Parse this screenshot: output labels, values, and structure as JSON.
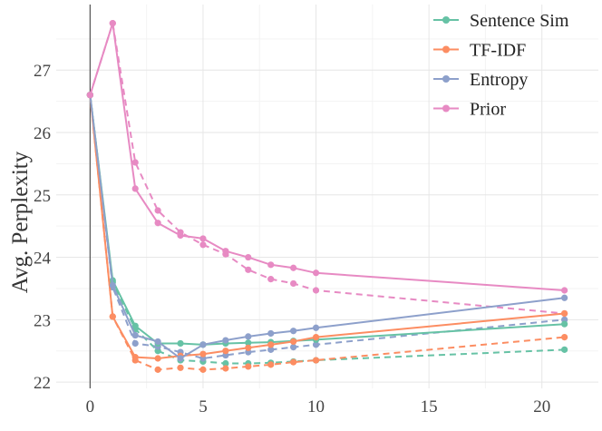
{
  "chart_data": {
    "type": "line",
    "title": "",
    "xlabel": "",
    "ylabel": "Avg. Perplexity",
    "xlim": [
      -1.5,
      22.5
    ],
    "ylim": [
      21.9,
      28.05
    ],
    "xticks": [
      0,
      5,
      10,
      15,
      20
    ],
    "yticks": [
      22,
      23,
      24,
      25,
      26,
      27
    ],
    "grid": true,
    "legend_position": "top-right",
    "series": [
      {
        "name": "Sentence Sim",
        "color": "#66c2a5",
        "style": "solid",
        "legend": true,
        "x": [
          0,
          1,
          2,
          3,
          4,
          5,
          6,
          7,
          8,
          9,
          10,
          21
        ],
        "y": [
          26.6,
          23.63,
          22.9,
          22.62,
          22.62,
          22.6,
          22.62,
          22.63,
          22.64,
          22.66,
          22.68,
          22.93
        ]
      },
      {
        "name": "TF-IDF",
        "color": "#fc8d62",
        "style": "solid",
        "legend": true,
        "x": [
          0,
          1,
          2,
          3,
          4,
          5,
          6,
          7,
          8,
          9,
          10,
          21
        ],
        "y": [
          26.6,
          23.05,
          22.4,
          22.38,
          22.42,
          22.45,
          22.5,
          22.55,
          22.6,
          22.65,
          22.72,
          23.1
        ]
      },
      {
        "name": "Entropy",
        "color": "#8da0cb",
        "style": "solid",
        "legend": true,
        "x": [
          0,
          1,
          2,
          3,
          4,
          5,
          6,
          7,
          8,
          9,
          10,
          21
        ],
        "y": [
          26.6,
          23.55,
          22.75,
          22.65,
          22.38,
          22.6,
          22.67,
          22.73,
          22.78,
          22.82,
          22.87,
          23.35
        ]
      },
      {
        "name": "Prior",
        "color": "#e78ac3",
        "style": "solid",
        "legend": true,
        "x": [
          0,
          1,
          2,
          3,
          4,
          5,
          6,
          7,
          8,
          9,
          10,
          21
        ],
        "y": [
          26.6,
          27.75,
          25.1,
          24.55,
          24.35,
          24.3,
          24.1,
          24.0,
          23.88,
          23.83,
          23.75,
          23.47
        ]
      },
      {
        "name": "Sentence Sim (dashed)",
        "color": "#66c2a5",
        "style": "dashed",
        "legend": false,
        "x": [
          0,
          1,
          2,
          3,
          4,
          5,
          6,
          7,
          8,
          9,
          10,
          21
        ],
        "y": [
          26.6,
          23.6,
          22.85,
          22.5,
          22.35,
          22.33,
          22.3,
          22.3,
          22.31,
          22.33,
          22.35,
          22.52
        ]
      },
      {
        "name": "TF-IDF (dashed)",
        "color": "#fc8d62",
        "style": "dashed",
        "legend": false,
        "x": [
          0,
          1,
          2,
          3,
          4,
          5,
          6,
          7,
          8,
          9,
          10,
          21
        ],
        "y": [
          26.6,
          23.05,
          22.35,
          22.2,
          22.23,
          22.2,
          22.22,
          22.25,
          22.28,
          22.32,
          22.35,
          22.72
        ]
      },
      {
        "name": "Entropy (dashed)",
        "color": "#8da0cb",
        "style": "dashed",
        "legend": false,
        "x": [
          0,
          1,
          2,
          3,
          4,
          5,
          6,
          7,
          8,
          9,
          10,
          21
        ],
        "y": [
          26.6,
          23.52,
          22.62,
          22.57,
          22.48,
          22.38,
          22.43,
          22.48,
          22.52,
          22.56,
          22.6,
          23.0
        ]
      },
      {
        "name": "Prior (dashed)",
        "color": "#e78ac3",
        "style": "dashed",
        "legend": false,
        "x": [
          0,
          1,
          2,
          3,
          4,
          5,
          6,
          7,
          8,
          9,
          10,
          21
        ],
        "y": [
          26.6,
          27.75,
          25.52,
          24.75,
          24.4,
          24.2,
          24.05,
          23.8,
          23.65,
          23.58,
          23.47,
          23.1
        ]
      }
    ]
  }
}
